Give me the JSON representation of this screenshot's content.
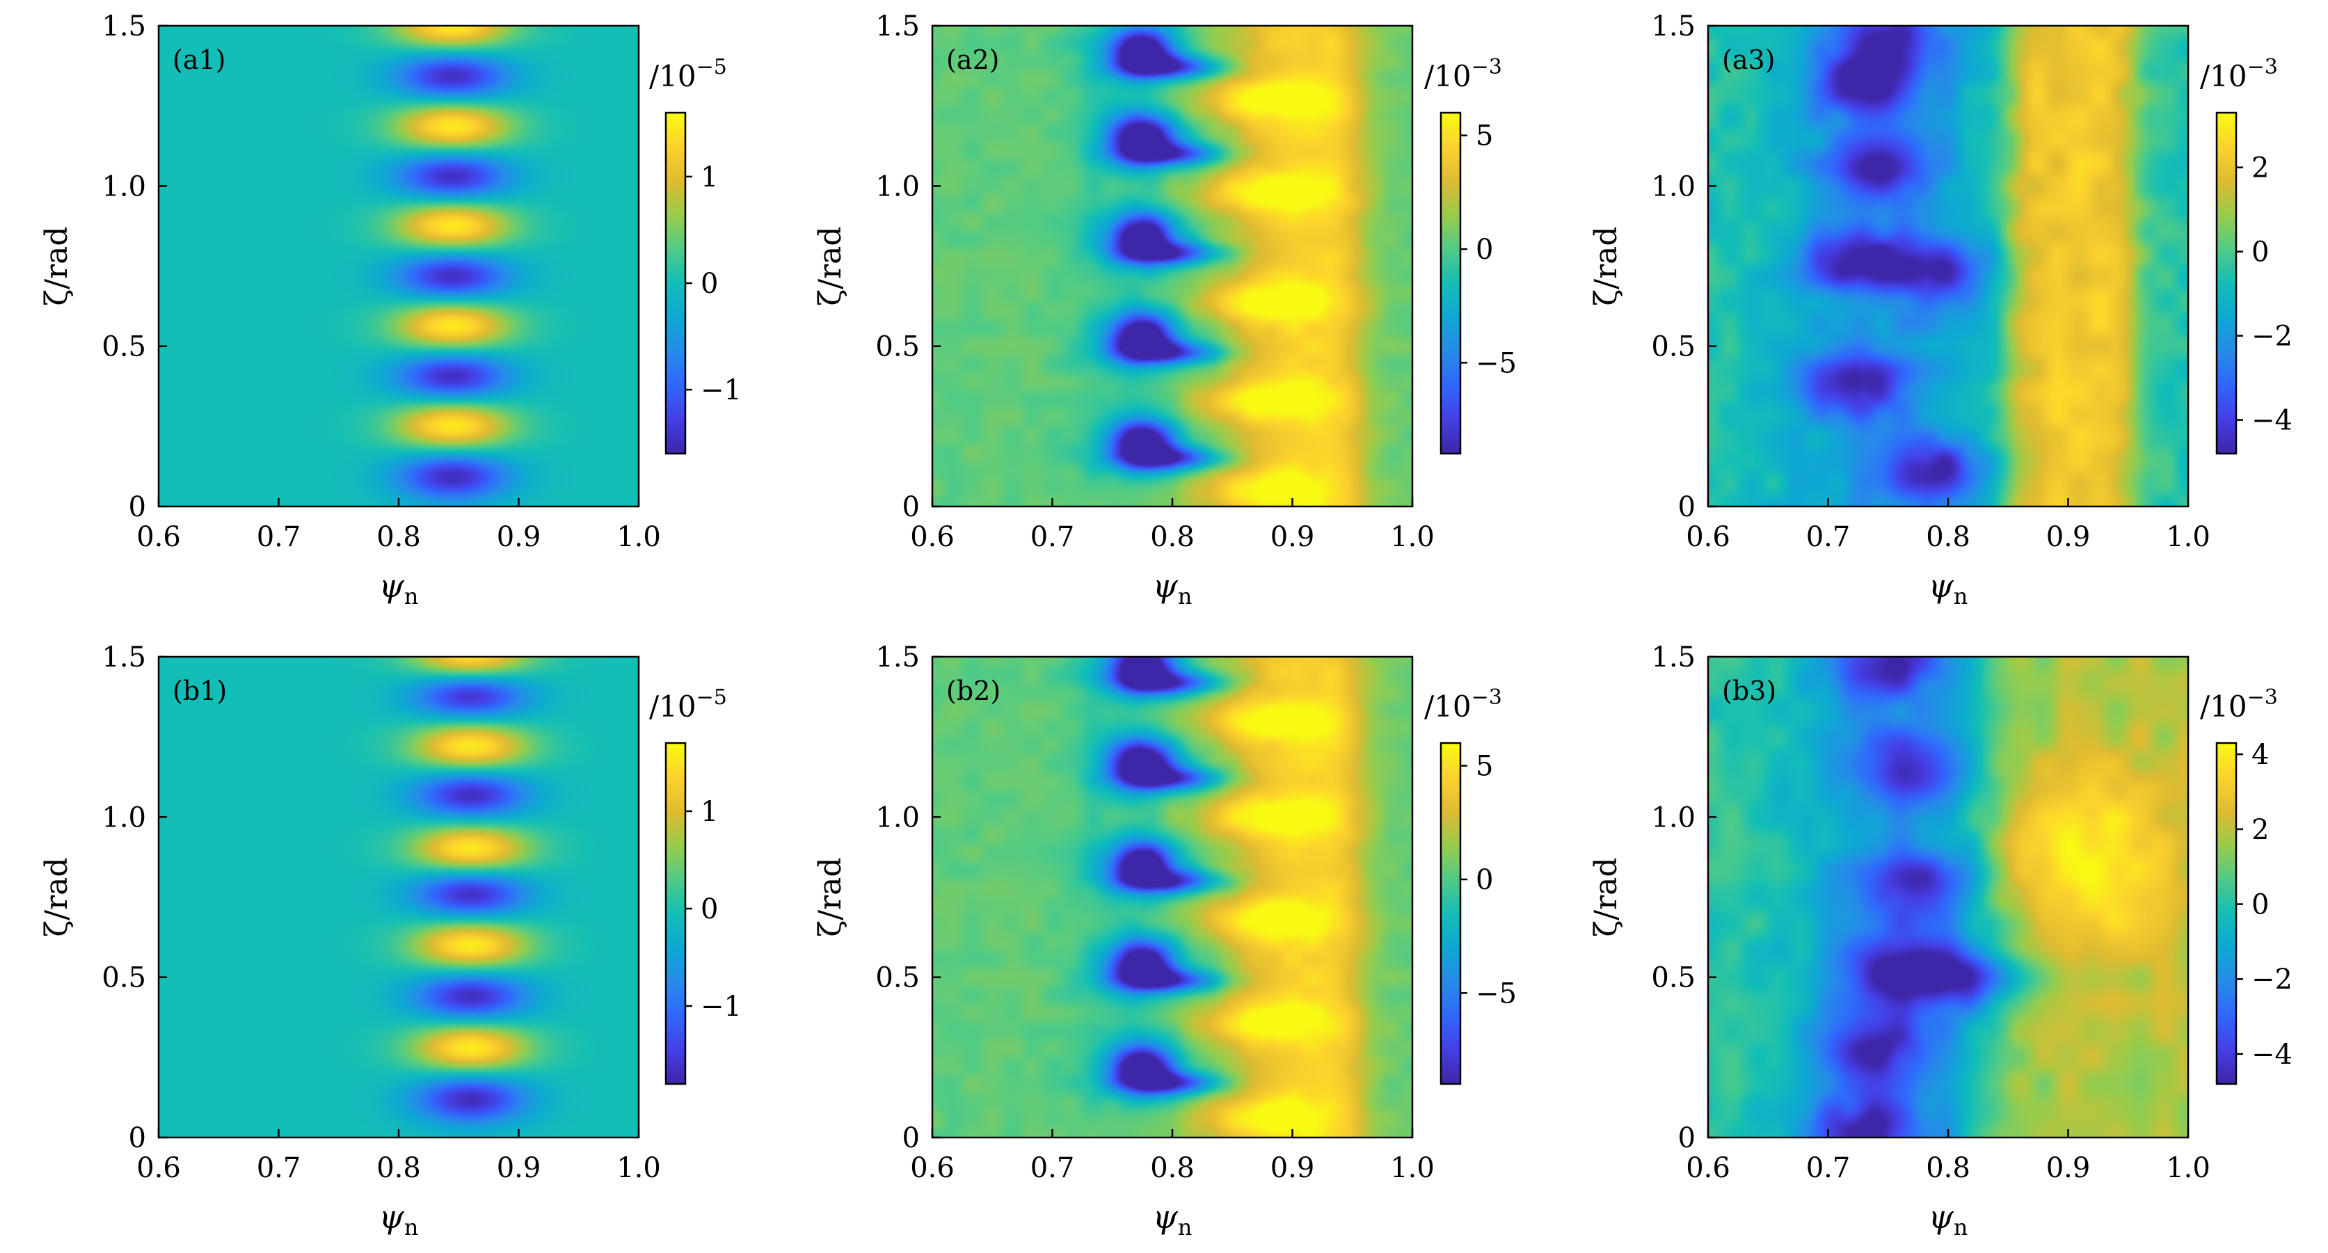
{
  "chart_data": [
    {
      "id": "a1",
      "type": "heatmap",
      "panel_label": "(a1)",
      "xlabel": "ψ",
      "xlabel_sub": "n",
      "ylabel": "ζ/rad",
      "xlim": [
        0.6,
        1.0
      ],
      "ylim": [
        0,
        1.5
      ],
      "xticks": [
        "0.6",
        "0.7",
        "0.8",
        "0.9",
        "1.0"
      ],
      "yticks": [
        "0",
        "0.5",
        "1.0",
        "1.5"
      ],
      "colorbar": {
        "unit_text": "/10",
        "unit_exp": "−5",
        "range": [
          -1.6,
          1.6
        ],
        "ticks": [
          1,
          0,
          -1
        ],
        "tick_labels": [
          "1",
          "0",
          "−1"
        ]
      },
      "field": {
        "kind": "mode",
        "center": 0.845,
        "width": 0.034,
        "peaks_y": [
          1.5,
          1.186,
          0.876,
          0.564,
          0.252
        ],
        "troughs_y": [
          1.342,
          1.03,
          0.718,
          0.406,
          0.094
        ]
      }
    },
    {
      "id": "a2",
      "type": "heatmap",
      "panel_label": "(a2)",
      "xlabel": "ψ",
      "xlabel_sub": "n",
      "ylabel": "ζ/rad",
      "xlim": [
        0.6,
        1.0
      ],
      "ylim": [
        0,
        1.5
      ],
      "xticks": [
        "0.6",
        "0.7",
        "0.8",
        "0.9",
        "1.0"
      ],
      "yticks": [
        "0",
        "0.5",
        "1.0",
        "1.5"
      ],
      "colorbar": {
        "unit_text": "/10",
        "unit_exp": "−3",
        "range": [
          -9,
          6
        ],
        "ticks": [
          5,
          0,
          -5
        ],
        "tick_labels": [
          "5",
          "0",
          "−5"
        ]
      },
      "field": {
        "kind": "vortex",
        "background": 0.0,
        "blobs_y": [
          1.42,
          1.15,
          0.84,
          0.53,
          0.2
        ],
        "fingers_y": [
          1.27,
          0.98,
          0.64,
          0.33,
          0.05
        ]
      }
    },
    {
      "id": "a3",
      "type": "heatmap",
      "panel_label": "(a3)",
      "xlabel": "ψ",
      "xlabel_sub": "n",
      "ylabel": "ζ/rad",
      "xlim": [
        0.6,
        1.0
      ],
      "ylim": [
        0,
        1.5
      ],
      "xticks": [
        "0.6",
        "0.7",
        "0.8",
        "0.9",
        "1.0"
      ],
      "yticks": [
        "0",
        "0.5",
        "1.0",
        "1.5"
      ],
      "colorbar": {
        "unit_text": "/10",
        "unit_exp": "−3",
        "range": [
          -4.8,
          3.3
        ],
        "ticks": [
          2,
          0,
          -2,
          -4
        ],
        "tick_labels": [
          "2",
          "0",
          "−2",
          "−4"
        ]
      },
      "field": {
        "kind": "turbulent",
        "band": [
          0.85,
          0.955
        ],
        "blobs": [
          [
            0.73,
            1.31
          ],
          [
            0.74,
            1.05
          ],
          [
            0.72,
            0.77
          ],
          [
            0.79,
            0.74
          ],
          [
            0.72,
            0.38
          ],
          [
            0.79,
            0.11
          ],
          [
            0.75,
            1.45
          ]
        ]
      }
    },
    {
      "id": "b1",
      "type": "heatmap",
      "panel_label": "(b1)",
      "xlabel": "ψ",
      "xlabel_sub": "n",
      "ylabel": "ζ/rad",
      "xlim": [
        0.6,
        1.0
      ],
      "ylim": [
        0,
        1.5
      ],
      "xticks": [
        "0.6",
        "0.7",
        "0.8",
        "0.9",
        "1.0"
      ],
      "yticks": [
        "0",
        "0.5",
        "1.0",
        "1.5"
      ],
      "colorbar": {
        "unit_text": "/10",
        "unit_exp": "−5",
        "range": [
          -1.8,
          1.7
        ],
        "ticks": [
          1,
          0,
          -1
        ],
        "tick_labels": [
          "1",
          "0",
          "−1"
        ]
      },
      "field": {
        "kind": "mode",
        "center": 0.86,
        "width": 0.034,
        "peaks_y": [
          1.5,
          1.22,
          0.9,
          0.6,
          0.28
        ],
        "troughs_y": [
          1.38,
          1.07,
          0.76,
          0.44,
          0.12
        ]
      }
    },
    {
      "id": "b2",
      "type": "heatmap",
      "panel_label": "(b2)",
      "xlabel": "ψ",
      "xlabel_sub": "n",
      "ylabel": "ζ/rad",
      "xlim": [
        0.6,
        1.0
      ],
      "ylim": [
        0,
        1.5
      ],
      "xticks": [
        "0.6",
        "0.7",
        "0.8",
        "0.9",
        "1.0"
      ],
      "yticks": [
        "0",
        "0.5",
        "1.0",
        "1.5"
      ],
      "colorbar": {
        "unit_text": "/10",
        "unit_exp": "−3",
        "range": [
          -9,
          6
        ],
        "ticks": [
          5,
          0,
          -5
        ],
        "tick_labels": [
          "5",
          "0",
          "−5"
        ]
      },
      "field": {
        "kind": "vortex",
        "background": 0.0,
        "blobs_y": [
          1.47,
          1.17,
          0.85,
          0.54,
          0.22
        ],
        "fingers_y": [
          1.3,
          1.0,
          0.68,
          0.36,
          0.06
        ]
      }
    },
    {
      "id": "b3",
      "type": "heatmap",
      "panel_label": "(b3)",
      "xlabel": "ψ",
      "xlabel_sub": "n",
      "ylabel": "ζ/rad",
      "xlim": [
        0.6,
        1.0
      ],
      "ylim": [
        0,
        1.5
      ],
      "xticks": [
        "0.6",
        "0.7",
        "0.8",
        "0.9",
        "1.0"
      ],
      "yticks": [
        "0",
        "0.5",
        "1.0",
        "1.5"
      ],
      "colorbar": {
        "unit_text": "/10",
        "unit_exp": "−3",
        "range": [
          -4.8,
          4.3
        ],
        "ticks": [
          4,
          2,
          0,
          -2,
          -4
        ],
        "tick_labels": [
          "4",
          "2",
          "0",
          "−2",
          "−4"
        ]
      },
      "field": {
        "kind": "turbulent2",
        "warm": [
          0.92,
          0.85
        ],
        "blobs": [
          [
            0.75,
            1.48
          ],
          [
            0.77,
            1.15
          ],
          [
            0.76,
            0.52
          ],
          [
            0.82,
            0.5
          ],
          [
            0.74,
            0.28
          ],
          [
            0.73,
            0.03
          ],
          [
            0.78,
            0.78
          ]
        ]
      }
    }
  ]
}
